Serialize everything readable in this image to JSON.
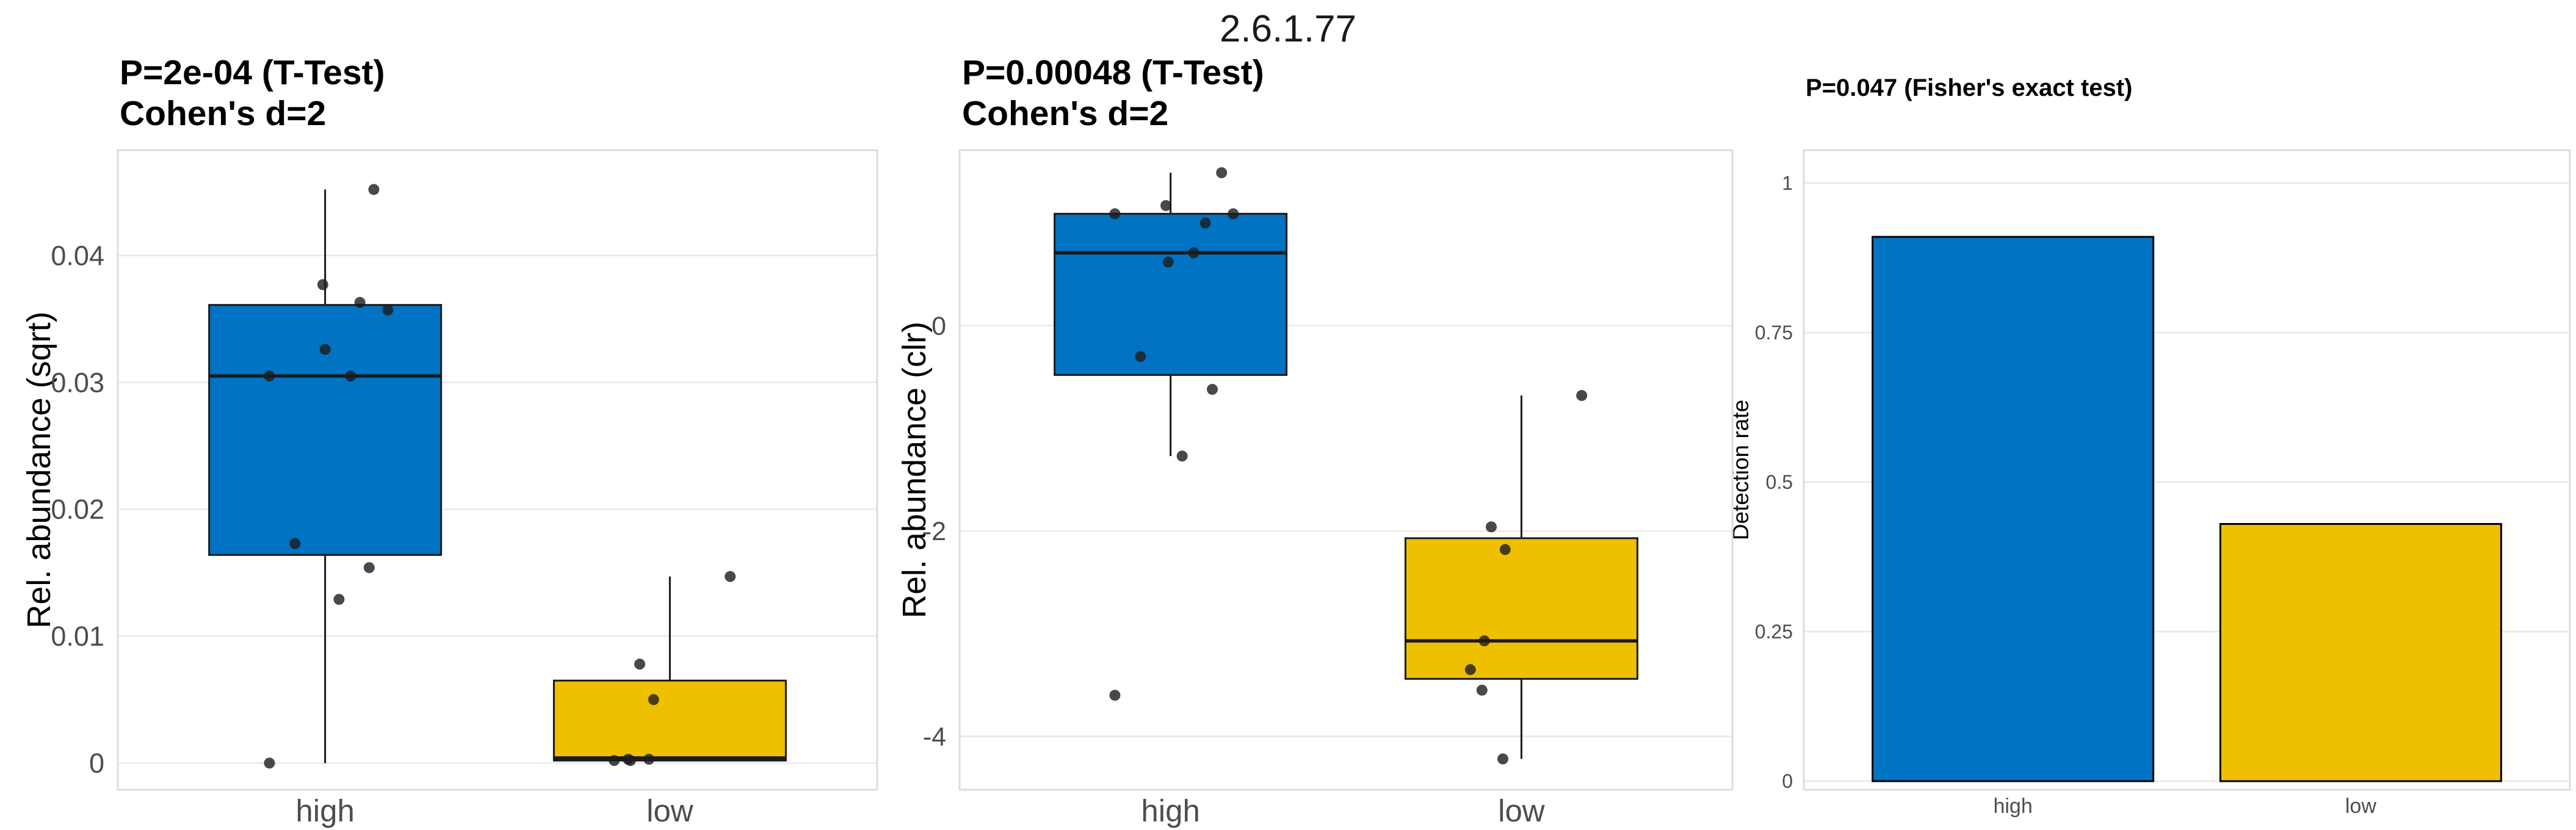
{
  "figure_title": "2.6.1.77",
  "palette": {
    "high": "#0073C2",
    "low": "#EFC000",
    "points": "#1C1C1C",
    "box_stroke": "#1A1A1A",
    "bar_stroke": "#000000",
    "grid": "#E8E8E8",
    "panel_border": "#DCDCDC",
    "tick_text": "#4D4D4D",
    "title_text": "#000000"
  },
  "chart_data": [
    {
      "type": "boxplot",
      "title_line1": "P=2e-04 (T-Test)",
      "title_line2": "Cohen's d=2",
      "ylabel": "Rel. abundance (sqrt)",
      "legend_position": "none",
      "grid": "major-horizontal",
      "ylim": [
        -0.0021,
        0.0483
      ],
      "yticks": [
        {
          "v": 0,
          "label": "0"
        },
        {
          "v": 0.01,
          "label": "0.01"
        },
        {
          "v": 0.02,
          "label": "0.02"
        },
        {
          "v": 0.03,
          "label": "0.03"
        },
        {
          "v": 0.04,
          "label": "0.04"
        }
      ],
      "categories": [
        "high",
        "low"
      ],
      "groups": [
        {
          "label": "high",
          "color_key": "high",
          "q1": 0.0164,
          "median": 0.0305,
          "q3": 0.0361,
          "whisker_low": 0.0,
          "whisker_high": 0.0452,
          "points": [
            [
              0.0452,
              0.21
            ],
            [
              0.0377,
              -0.01
            ],
            [
              0.0363,
              0.15
            ],
            [
              0.0357,
              0.27
            ],
            [
              0.0326,
              0.0
            ],
            [
              0.0305,
              -0.24
            ],
            [
              0.0305,
              0.11
            ],
            [
              0.0173,
              -0.13
            ],
            [
              0.0154,
              0.19
            ],
            [
              0.0129,
              0.06
            ],
            [
              0.0,
              -0.24
            ]
          ]
        },
        {
          "label": "low",
          "color_key": "low",
          "q1": 0.0002,
          "median": 0.0004,
          "q3": 0.0065,
          "whisker_low": 0.0002,
          "whisker_high": 0.0147,
          "points": [
            [
              0.0147,
              0.26
            ],
            [
              0.0078,
              -0.13
            ],
            [
              0.005,
              -0.07
            ],
            [
              0.0002,
              -0.24
            ],
            [
              0.0003,
              -0.18
            ],
            [
              0.0002,
              -0.17
            ],
            [
              0.0003,
              -0.09
            ]
          ]
        }
      ]
    },
    {
      "type": "boxplot",
      "title_line1": "P=0.00048 (T-Test)",
      "title_line2": "Cohen's d=2",
      "ylabel": "Rel. abundance (clr)",
      "legend_position": "none",
      "grid": "major-horizontal",
      "ylim": [
        -4.52,
        1.71
      ],
      "yticks": [
        {
          "v": 0,
          "label": "0"
        },
        {
          "v": -2,
          "label": "-2"
        },
        {
          "v": -4,
          "label": "-4"
        }
      ],
      "categories": [
        "high",
        "low"
      ],
      "groups": [
        {
          "label": "high",
          "color_key": "high",
          "q1": -0.48,
          "median": 0.71,
          "q3": 1.09,
          "whisker_low": -1.27,
          "whisker_high": 1.49,
          "points": [
            [
              1.49,
              0.22
            ],
            [
              1.17,
              -0.02
            ],
            [
              1.09,
              -0.24
            ],
            [
              1.09,
              0.27
            ],
            [
              1.0,
              0.15
            ],
            [
              0.71,
              0.1
            ],
            [
              0.62,
              -0.01
            ],
            [
              -0.3,
              -0.13
            ],
            [
              -0.62,
              0.18
            ],
            [
              -1.27,
              0.05
            ],
            [
              -3.6,
              -0.24
            ]
          ]
        },
        {
          "label": "low",
          "color_key": "low",
          "q1": -3.44,
          "median": -3.07,
          "q3": -2.07,
          "whisker_low": -4.22,
          "whisker_high": -0.68,
          "points": [
            [
              -0.68,
              0.26
            ],
            [
              -1.96,
              -0.13
            ],
            [
              -2.18,
              -0.07
            ],
            [
              -3.07,
              -0.16
            ],
            [
              -3.35,
              -0.22
            ],
            [
              -3.55,
              -0.17
            ],
            [
              -4.22,
              -0.08
            ]
          ]
        }
      ]
    },
    {
      "type": "bar",
      "title_line1": "P=0.047 (Fisher's exact test)",
      "title_line2": "",
      "ylabel": "Detection rate",
      "legend_position": "none",
      "grid": "major-horizontal",
      "ylim": [
        -0.0143,
        1.055
      ],
      "yticks": [
        {
          "v": 0,
          "label": "0"
        },
        {
          "v": 0.25,
          "label": "0.25"
        },
        {
          "v": 0.5,
          "label": "0.5"
        },
        {
          "v": 0.75,
          "label": "0.75"
        },
        {
          "v": 1,
          "label": "1"
        }
      ],
      "categories": [
        "high",
        "low"
      ],
      "bars": [
        {
          "label": "high",
          "value": 0.91,
          "color_key": "high"
        },
        {
          "label": "low",
          "value": 0.43,
          "color_key": "low"
        }
      ]
    }
  ]
}
